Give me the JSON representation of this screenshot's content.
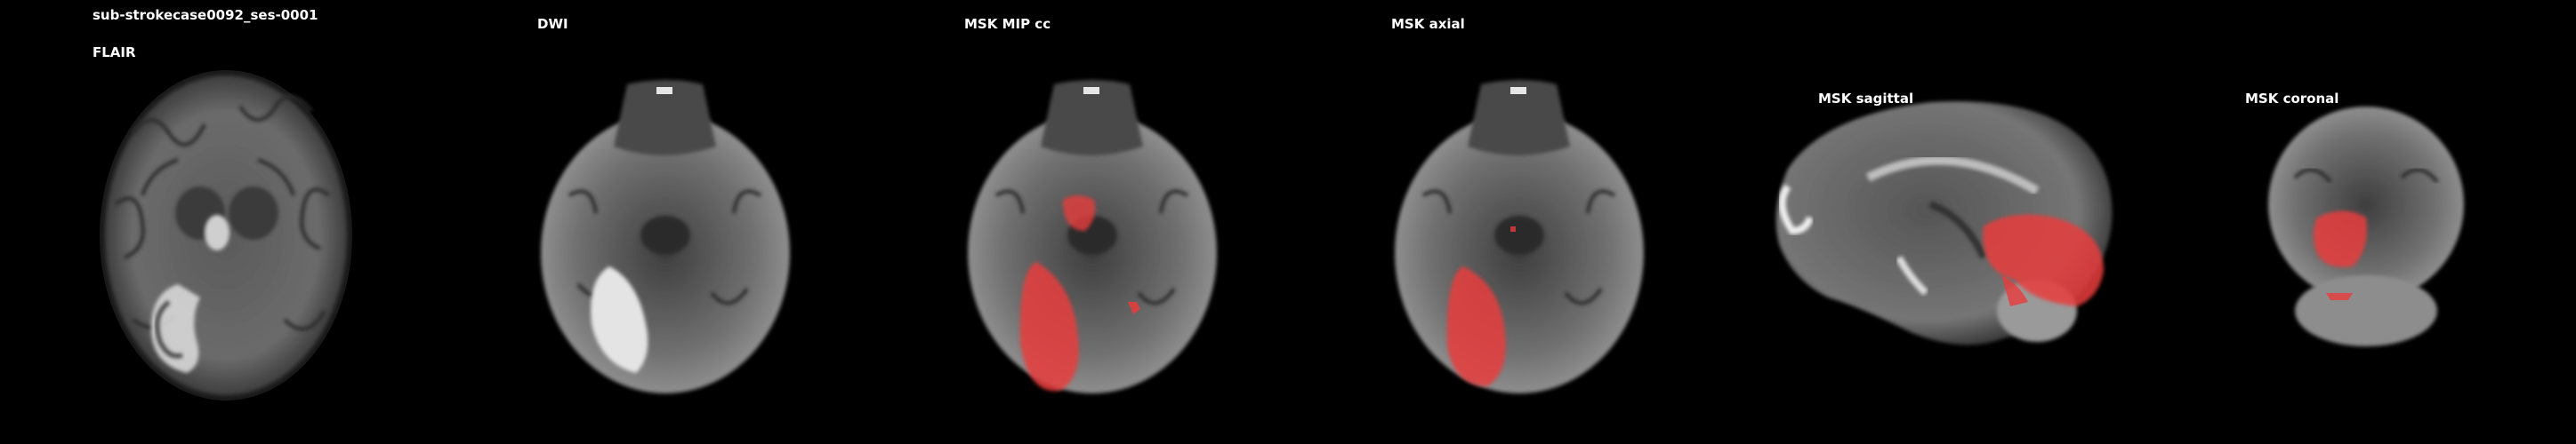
{
  "subject_title": "sub-strokecase0092_ses-0001",
  "panels": [
    {
      "id": "flair",
      "label": "FLAIR"
    },
    {
      "id": "dwi",
      "label": "DWI"
    },
    {
      "id": "msk-mip",
      "label": "MSK MIP cc"
    },
    {
      "id": "msk-axial",
      "label": "MSK axial"
    },
    {
      "id": "msk-sagittal",
      "label": "MSK sagittal"
    },
    {
      "id": "msk-coronal",
      "label": "MSK coronal"
    }
  ],
  "colors": {
    "background": "#000000",
    "mask": "#e83c3c"
  }
}
